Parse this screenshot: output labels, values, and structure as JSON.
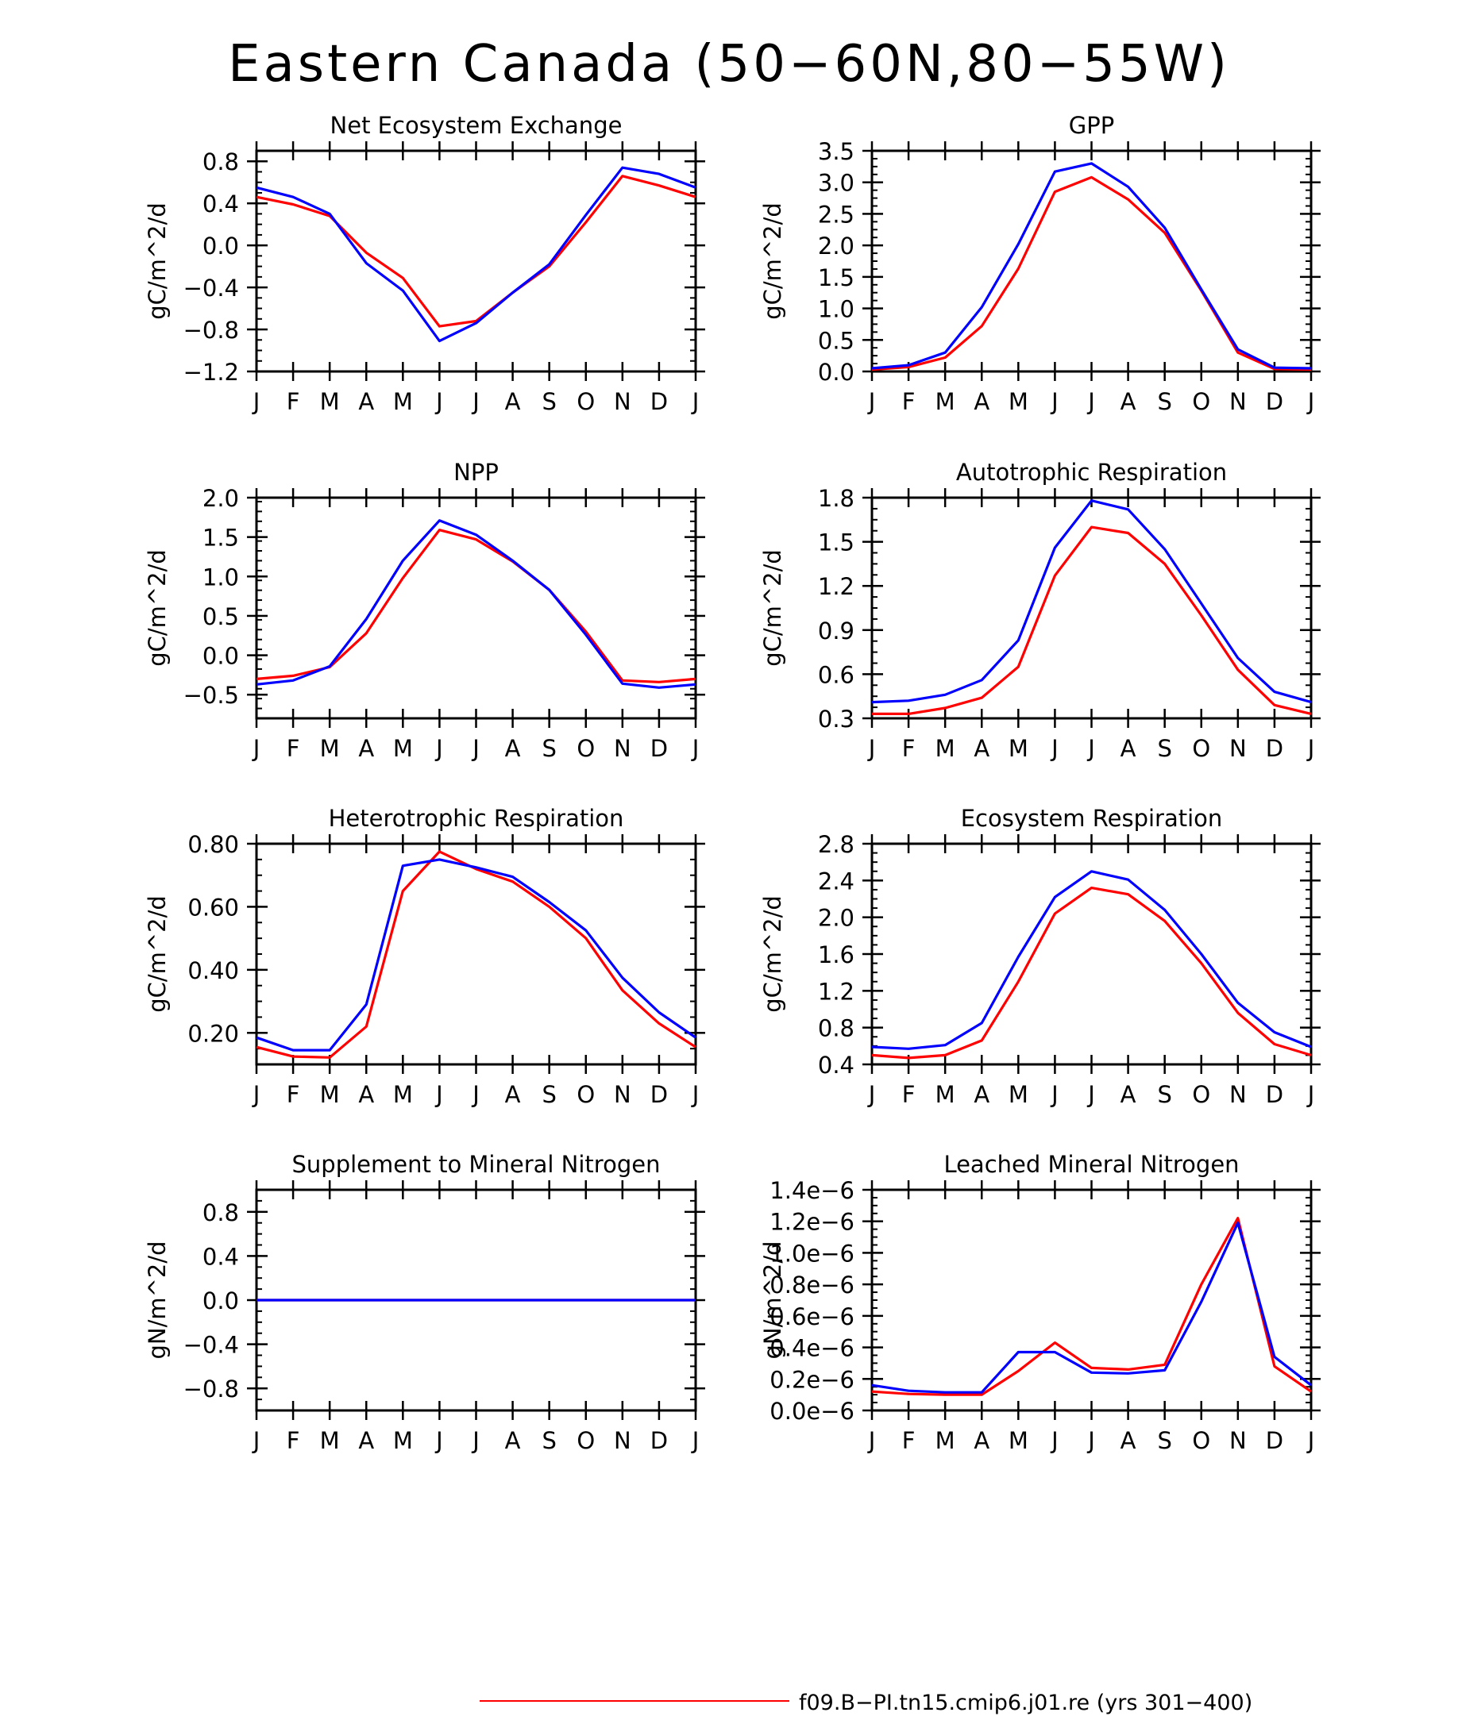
{
  "figure": {
    "title": "Eastern Canada (50−60N,80−55W)",
    "legend": [
      {
        "label": "f09.B−PI.tn15.cmip6.j01.re (yrs 301−400)",
        "color": "#ff0000"
      }
    ]
  },
  "months": [
    "J",
    "F",
    "M",
    "A",
    "M",
    "J",
    "J",
    "A",
    "S",
    "O",
    "N",
    "D",
    "J"
  ],
  "colors": {
    "red": "#ff0000",
    "blue": "#0000ff"
  },
  "chart_data": [
    {
      "type": "line",
      "title": "Net Ecosystem Exchange",
      "ylabel": "gC/m^2/d",
      "ylim": [
        -1.2,
        0.9
      ],
      "yticks": [
        -1.2,
        -0.8,
        -0.4,
        0.0,
        0.4,
        0.8
      ],
      "ytick_labels": [
        "−1.2",
        "−0.8",
        "−0.4",
        "0.0",
        "0.4",
        "0.8"
      ],
      "series": [
        {
          "color": "#ff0000",
          "values": [
            0.46,
            0.39,
            0.28,
            -0.07,
            -0.31,
            -0.77,
            -0.72,
            -0.45,
            -0.2,
            0.22,
            0.66,
            0.57,
            0.46
          ]
        },
        {
          "color": "#0000ff",
          "values": [
            0.55,
            0.46,
            0.3,
            -0.17,
            -0.43,
            -0.91,
            -0.74,
            -0.45,
            -0.18,
            0.29,
            0.74,
            0.68,
            0.55
          ]
        }
      ]
    },
    {
      "type": "line",
      "title": "GPP",
      "ylabel": "gC/m^2/d",
      "ylim": [
        0,
        3.5
      ],
      "yticks": [
        0,
        0.5,
        1,
        1.5,
        2,
        2.5,
        3,
        3.5
      ],
      "ytick_labels": [
        "0.0",
        "0.5",
        "1.0",
        "1.5",
        "2.0",
        "2.5",
        "3.0",
        "3.5"
      ],
      "series": [
        {
          "color": "#ff0000",
          "values": [
            0.03,
            0.07,
            0.22,
            0.72,
            1.63,
            2.85,
            3.08,
            2.73,
            2.2,
            1.28,
            0.3,
            0.04,
            0.03
          ]
        },
        {
          "color": "#0000ff",
          "values": [
            0.05,
            0.1,
            0.3,
            1.02,
            2.02,
            3.17,
            3.3,
            2.93,
            2.28,
            1.3,
            0.35,
            0.06,
            0.05
          ]
        }
      ]
    },
    {
      "type": "line",
      "title": "NPP",
      "ylabel": "gC/m^2/d",
      "ylim": [
        -0.8,
        2.0
      ],
      "yticks": [
        -0.5,
        0,
        0.5,
        1,
        1.5,
        2
      ],
      "ytick_labels": [
        "−0.5",
        "0.0",
        "0.5",
        "1.0",
        "1.5",
        "2.0"
      ],
      "series": [
        {
          "color": "#ff0000",
          "values": [
            -0.3,
            -0.26,
            -0.15,
            0.28,
            0.98,
            1.59,
            1.47,
            1.19,
            0.83,
            0.3,
            -0.32,
            -0.34,
            -0.3
          ]
        },
        {
          "color": "#0000ff",
          "values": [
            -0.37,
            -0.32,
            -0.14,
            0.46,
            1.2,
            1.71,
            1.53,
            1.2,
            0.83,
            0.26,
            -0.36,
            -0.41,
            -0.37
          ]
        }
      ]
    },
    {
      "type": "line",
      "title": "Autotrophic Respiration",
      "ylabel": "gC/m^2/d",
      "ylim": [
        0.3,
        1.8
      ],
      "yticks": [
        0.3,
        0.6,
        0.9,
        1.2,
        1.5,
        1.8
      ],
      "ytick_labels": [
        "0.3",
        "0.6",
        "0.9",
        "1.2",
        "1.5",
        "1.8"
      ],
      "series": [
        {
          "color": "#ff0000",
          "values": [
            0.33,
            0.33,
            0.37,
            0.44,
            0.65,
            1.27,
            1.6,
            1.56,
            1.35,
            1.0,
            0.63,
            0.39,
            0.33
          ]
        },
        {
          "color": "#0000ff",
          "values": [
            0.41,
            0.42,
            0.46,
            0.56,
            0.83,
            1.46,
            1.78,
            1.72,
            1.45,
            1.08,
            0.71,
            0.48,
            0.41
          ]
        }
      ]
    },
    {
      "type": "line",
      "title": "Heterotrophic Respiration",
      "ylabel": "gC/m^2/d",
      "ylim": [
        0.1,
        0.8
      ],
      "yticks": [
        0.2,
        0.4,
        0.6,
        0.8
      ],
      "ytick_labels": [
        "0.20",
        "0.40",
        "0.60",
        "0.80"
      ],
      "series": [
        {
          "color": "#ff0000",
          "values": [
            0.155,
            0.125,
            0.122,
            0.22,
            0.65,
            0.775,
            0.72,
            0.68,
            0.6,
            0.5,
            0.335,
            0.23,
            0.155
          ]
        },
        {
          "color": "#0000ff",
          "values": [
            0.185,
            0.145,
            0.145,
            0.29,
            0.73,
            0.75,
            0.725,
            0.695,
            0.615,
            0.525,
            0.375,
            0.265,
            0.185
          ]
        }
      ]
    },
    {
      "type": "line",
      "title": "Ecosystem Respiration",
      "ylabel": "gC/m^2/d",
      "ylim": [
        0.4,
        2.8
      ],
      "yticks": [
        0.4,
        0.8,
        1.2,
        1.6,
        2.0,
        2.4,
        2.8
      ],
      "ytick_labels": [
        "0.4",
        "0.8",
        "1.2",
        "1.6",
        "2.0",
        "2.4",
        "2.8"
      ],
      "series": [
        {
          "color": "#ff0000",
          "values": [
            0.5,
            0.47,
            0.5,
            0.66,
            1.3,
            2.04,
            2.32,
            2.25,
            1.96,
            1.5,
            0.96,
            0.62,
            0.5
          ]
        },
        {
          "color": "#0000ff",
          "values": [
            0.59,
            0.57,
            0.61,
            0.85,
            1.57,
            2.22,
            2.5,
            2.41,
            2.08,
            1.6,
            1.07,
            0.75,
            0.59
          ]
        }
      ]
    },
    {
      "type": "line",
      "title": "Supplement to Mineral Nitrogen",
      "ylabel": "gN/m^2/d",
      "ylim": [
        -1.0,
        1.0
      ],
      "yticks": [
        -0.8,
        -0.4,
        0,
        0.4,
        0.8
      ],
      "ytick_labels": [
        "−0.8",
        "−0.4",
        "0.0",
        "0.4",
        "0.8"
      ],
      "series": [
        {
          "color": "#ff0000",
          "values": [
            0,
            0,
            0,
            0,
            0,
            0,
            0,
            0,
            0,
            0,
            0,
            0,
            0
          ]
        },
        {
          "color": "#0000ff",
          "values": [
            0,
            0,
            0,
            0,
            0,
            0,
            0,
            0,
            0,
            0,
            0,
            0,
            0
          ]
        }
      ]
    },
    {
      "type": "line",
      "title": "Leached Mineral Nitrogen",
      "ylabel": "gN/m^2/d",
      "ylim": [
        0,
        1.4e-06
      ],
      "yticks": [
        0,
        2e-07,
        4e-07,
        6e-07,
        8e-07,
        1e-06,
        1.2e-06,
        1.4e-06
      ],
      "ytick_labels": [
        "0.0e−6",
        "0.2e−6",
        "0.4e−6",
        "0.6e−6",
        "0.8e−6",
        "1.0e−6",
        "1.2e−6",
        "1.4e−6"
      ],
      "series": [
        {
          "color": "#ff0000",
          "values": [
            1.2e-07,
            1.05e-07,
            1e-07,
            1e-07,
            2.5e-07,
            4.3e-07,
            2.7e-07,
            2.6e-07,
            2.9e-07,
            8e-07,
            1.22e-06,
            2.8e-07,
            1.2e-07
          ]
        },
        {
          "color": "#0000ff",
          "values": [
            1.6e-07,
            1.25e-07,
            1.15e-07,
            1.15e-07,
            3.7e-07,
            3.7e-07,
            2.4e-07,
            2.35e-07,
            2.55e-07,
            6.9e-07,
            1.19e-06,
            3.4e-07,
            1.6e-07
          ]
        }
      ]
    }
  ]
}
